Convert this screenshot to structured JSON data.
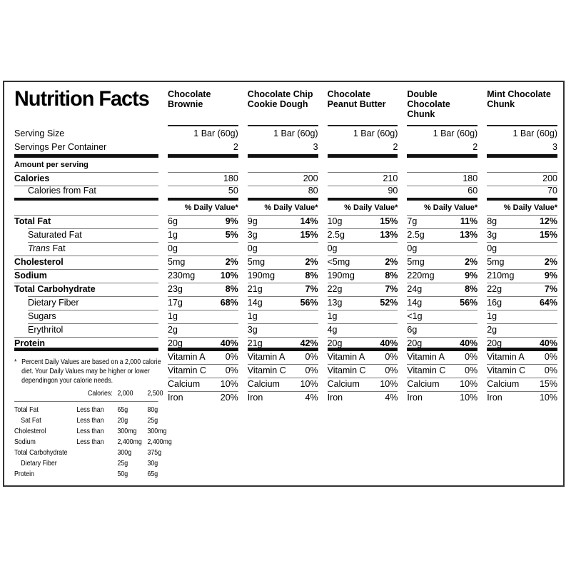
{
  "title": "Nutrition Facts",
  "colors": {
    "background": "#ffffff",
    "text": "#000000",
    "thin_line": "#777777",
    "thick_line": "#111111",
    "border": "#333333"
  },
  "labels": {
    "serving_size": "Serving Size",
    "servings_per_container": "Servings Per Container",
    "amount_per_serving": "Amount per serving",
    "calories": "Calories",
    "calories_from_fat": "Calories from Fat",
    "daily_value_header": "% Daily Value*"
  },
  "products": [
    {
      "name": "Chocolate Brownie",
      "serving_size": "1 Bar (60g)",
      "servings": "2",
      "calories": "180",
      "calories_from_fat": "50"
    },
    {
      "name": "Chocolate Chip Cookie Dough",
      "serving_size": "1 Bar (60g)",
      "servings": "3",
      "calories": "200",
      "calories_from_fat": "80"
    },
    {
      "name": "Chocolate Peanut Butter",
      "serving_size": "1 Bar (60g)",
      "servings": "2",
      "calories": "210",
      "calories_from_fat": "90"
    },
    {
      "name": "Double Chocolate Chunk",
      "serving_size": "1 Bar (60g)",
      "servings": "2",
      "calories": "180",
      "calories_from_fat": "60"
    },
    {
      "name": "Mint Chocolate Chunk",
      "serving_size": "1 Bar (60g)",
      "servings": "3",
      "calories": "200",
      "calories_from_fat": "70"
    }
  ],
  "nutrient_rows": [
    {
      "label": "Total Fat",
      "style": "bold",
      "amounts": [
        "6g",
        "9g",
        "10g",
        "7g",
        "8g"
      ],
      "dv": [
        "9%",
        "14%",
        "15%",
        "11%",
        "12%"
      ]
    },
    {
      "label": "Saturated Fat",
      "style": "indent",
      "amounts": [
        "1g",
        "3g",
        "2.5g",
        "2.5g",
        "3g"
      ],
      "dv": [
        "5%",
        "15%",
        "13%",
        "13%",
        "15%"
      ]
    },
    {
      "label_italic": "Trans",
      "label": " Fat",
      "style": "indent",
      "amounts": [
        "0g",
        "0g",
        "0g",
        "0g",
        "0g"
      ],
      "dv": [
        "",
        "",
        "",
        "",
        ""
      ]
    },
    {
      "label": "Cholesterol",
      "style": "bold",
      "amounts": [
        "5mg",
        "5mg",
        "<5mg",
        "5mg",
        "5mg"
      ],
      "dv": [
        "2%",
        "2%",
        "2%",
        "2%",
        "2%"
      ]
    },
    {
      "label": "Sodium",
      "style": "bold",
      "amounts": [
        "230mg",
        "190mg",
        "190mg",
        "220mg",
        "210mg"
      ],
      "dv": [
        "10%",
        "8%",
        "8%",
        "9%",
        "9%"
      ]
    },
    {
      "label": "Total Carbohydrate",
      "style": "bold",
      "amounts": [
        "23g",
        "21g",
        "22g",
        "24g",
        "22g"
      ],
      "dv": [
        "8%",
        "7%",
        "7%",
        "8%",
        "7%"
      ]
    },
    {
      "label": "Dietary Fiber",
      "style": "indent",
      "amounts": [
        "17g",
        "14g",
        "13g",
        "14g",
        "16g"
      ],
      "dv": [
        "68%",
        "56%",
        "52%",
        "56%",
        "64%"
      ]
    },
    {
      "label": "Sugars",
      "style": "indent",
      "amounts": [
        "1g",
        "1g",
        "1g",
        "<1g",
        "1g"
      ],
      "dv": [
        "",
        "",
        "",
        "",
        ""
      ]
    },
    {
      "label": "Erythritol",
      "style": "indent",
      "amounts": [
        "2g",
        "3g",
        "4g",
        "6g",
        "2g"
      ],
      "dv": [
        "",
        "",
        "",
        "",
        ""
      ]
    },
    {
      "label": "Protein",
      "style": "bold",
      "amounts": [
        "20g",
        "21g",
        "20g",
        "20g",
        "20g"
      ],
      "dv": [
        "40%",
        "42%",
        "40%",
        "40%",
        "40%"
      ]
    }
  ],
  "vitamin_rows": [
    {
      "label": "Vitamin A",
      "values": [
        "0%",
        "0%",
        "0%",
        "0%",
        "0%"
      ]
    },
    {
      "label": "Vitamin C",
      "values": [
        "0%",
        "0%",
        "0%",
        "0%",
        "0%"
      ]
    },
    {
      "label": "Calcium",
      "values": [
        "10%",
        "10%",
        "10%",
        "10%",
        "15%"
      ]
    },
    {
      "label": "Iron",
      "values": [
        "20%",
        "4%",
        "4%",
        "10%",
        "10%"
      ]
    }
  ],
  "footnote": {
    "marker": "*",
    "lines": [
      "Percent Daily Values are based on a 2,000 calorie",
      "diet. Your Daily Values may be higher or lower",
      "dependingon your calorie needs."
    ],
    "calories_row": {
      "label": "Calories:",
      "v1": "2,000",
      "v2": "2,500"
    },
    "rows": [
      {
        "label": "Total Fat",
        "indent": false,
        "qualifier": "Less than",
        "v1": "65g",
        "v2": "80g"
      },
      {
        "label": "Sat Fat",
        "indent": true,
        "qualifier": "Less than",
        "v1": "20g",
        "v2": "25g"
      },
      {
        "label": "Cholesterol",
        "indent": false,
        "qualifier": "Less than",
        "v1": "300mg",
        "v2": "300mg"
      },
      {
        "label": "Sodium",
        "indent": false,
        "qualifier": "Less than",
        "v1": "2,400mg",
        "v2": "2,400mg"
      },
      {
        "label": "Total Carbohydrate",
        "indent": false,
        "qualifier": "",
        "v1": "300g",
        "v2": "375g"
      },
      {
        "label": "Dietary Fiber",
        "indent": true,
        "qualifier": "",
        "v1": "25g",
        "v2": "30g"
      },
      {
        "label": "Protein",
        "indent": false,
        "qualifier": "",
        "v1": "50g",
        "v2": "65g"
      }
    ]
  }
}
